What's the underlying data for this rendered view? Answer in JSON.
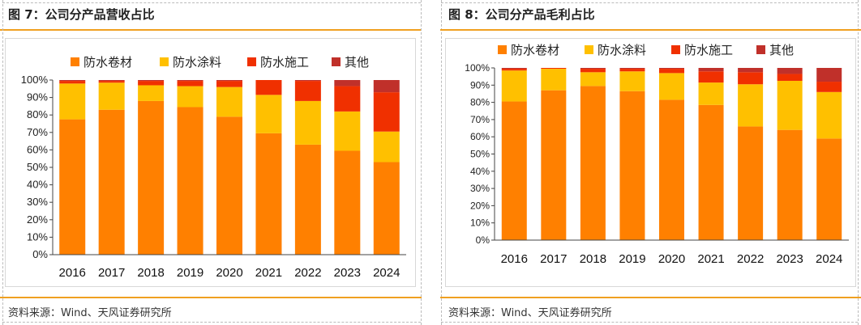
{
  "panels": [
    {
      "title": "图 7：公司分产品营收占比",
      "source": "资料来源：Wind、天风证券研究所"
    },
    {
      "title": "图 8：公司分产品毛利占比",
      "source": "资料来源：Wind、天风证券研究所"
    }
  ],
  "chart_data": [
    {
      "type": "bar",
      "stacked": true,
      "title": "",
      "xlabel": "",
      "ylabel": "",
      "ylim": [
        0,
        100
      ],
      "y_ticks": [
        "0%",
        "10%",
        "20%",
        "30%",
        "40%",
        "50%",
        "60%",
        "70%",
        "80%",
        "90%",
        "100%"
      ],
      "legend_position": "top",
      "grid": false,
      "categories": [
        "2016",
        "2017",
        "2018",
        "2019",
        "2020",
        "2021",
        "2022",
        "2023",
        "2024"
      ],
      "series": [
        {
          "name": "防水卷材",
          "color": "#ff8000",
          "values": [
            77.5,
            83,
            88,
            84.5,
            79,
            69.5,
            63,
            59.5,
            53
          ]
        },
        {
          "name": "防水涂料",
          "color": "#ffc000",
          "values": [
            20.5,
            15.5,
            9,
            12,
            17,
            22,
            25,
            22.5,
            17.5
          ]
        },
        {
          "name": "防水施工",
          "color": "#f03000",
          "values": [
            1.5,
            1,
            2.5,
            3,
            3.5,
            8.5,
            11.5,
            14.5,
            22.5
          ]
        },
        {
          "name": "其他",
          "color": "#c0302a",
          "values": [
            0.5,
            0.5,
            0.5,
            0.5,
            0.5,
            0,
            0.5,
            4,
            7
          ]
        }
      ]
    },
    {
      "type": "bar",
      "stacked": true,
      "title": "",
      "xlabel": "",
      "ylabel": "",
      "ylim": [
        0,
        100
      ],
      "y_ticks": [
        "0%",
        "10%",
        "20%",
        "30%",
        "40%",
        "50%",
        "60%",
        "70%",
        "80%",
        "90%",
        "100%"
      ],
      "legend_position": "top",
      "grid": false,
      "categories": [
        "2016",
        "2017",
        "2018",
        "2019",
        "2020",
        "2021",
        "2022",
        "2023",
        "2024"
      ],
      "series": [
        {
          "name": "防水卷材",
          "color": "#ff8000",
          "values": [
            80.5,
            87,
            89.5,
            86.5,
            81.5,
            78.5,
            66,
            64,
            59
          ]
        },
        {
          "name": "防水涂料",
          "color": "#ffc000",
          "values": [
            18,
            12.5,
            8,
            11.5,
            15.5,
            13,
            24.5,
            28.5,
            27
          ]
        },
        {
          "name": "防水施工",
          "color": "#f03000",
          "values": [
            1,
            0.5,
            2,
            1.5,
            2.5,
            6.5,
            7,
            4,
            6
          ]
        },
        {
          "name": "其他",
          "color": "#c0302a",
          "values": [
            0.5,
            0,
            0.5,
            0.5,
            0.5,
            2,
            2.5,
            3.5,
            8
          ]
        }
      ]
    }
  ]
}
